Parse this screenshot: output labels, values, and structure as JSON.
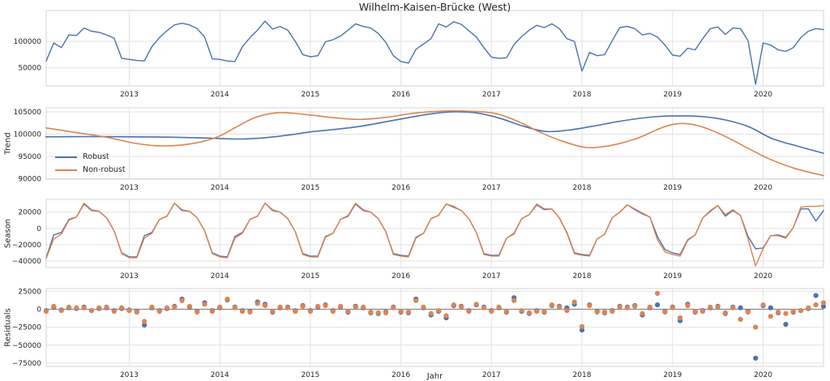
{
  "figure": {
    "title": "Wilhelm-Kaisen-Brücke (West)",
    "xlabel": "Jahr",
    "colors": {
      "robust_blue": "#4c72b0",
      "nonrobust_orange": "#dd8452",
      "gridline": "#e2e2e2",
      "panel_border": "#d5d5d5",
      "zero_line": "#8a8a8a",
      "text": "#262626"
    },
    "legend": {
      "items": [
        {
          "label": "Robust",
          "color": "#4c72b0"
        },
        {
          "label": "Non-robust",
          "color": "#dd8452"
        }
      ]
    },
    "xlim": [
      2012.083,
      2020.667
    ],
    "xticks": [
      {
        "v": 2013,
        "label": "2013"
      },
      {
        "v": 2014,
        "label": "2014"
      },
      {
        "v": 2015,
        "label": "2015"
      },
      {
        "v": 2016,
        "label": "2016"
      },
      {
        "v": 2017,
        "label": "2017"
      },
      {
        "v": 2018,
        "label": "2018"
      },
      {
        "v": 2019,
        "label": "2019"
      },
      {
        "v": 2020,
        "label": "2020"
      }
    ]
  },
  "chart_data": [
    {
      "id": "observed",
      "type": "line",
      "ylabel": "",
      "values_scale": 1000,
      "ylim": [
        16,
        158
      ],
      "yticks": [
        {
          "v": 50,
          "label": "50000"
        },
        {
          "v": 100,
          "label": "100000"
        }
      ],
      "x_start": 2012.0833,
      "x_step": 0.083333,
      "series": [
        {
          "name": "observed",
          "color": "#4c72b0",
          "smooth": false,
          "values": [
            63,
            97,
            88,
            112,
            111,
            125,
            119,
            117,
            112,
            106,
            68,
            66,
            64,
            63,
            90,
            107,
            120,
            131,
            134,
            131,
            124,
            108,
            67,
            66,
            63,
            62,
            90,
            107,
            121,
            138,
            123,
            128,
            121,
            100,
            75,
            71,
            73,
            99,
            103,
            110,
            121,
            133,
            128,
            125,
            115,
            98,
            73,
            62,
            59,
            85,
            95,
            105,
            133,
            127,
            137,
            132,
            120,
            108,
            88,
            70,
            68,
            69,
            94,
            109,
            121,
            130,
            126,
            133,
            124,
            105,
            100,
            44,
            79,
            73,
            75,
            101,
            126,
            128,
            124,
            112,
            115,
            108,
            93,
            74,
            72,
            87,
            84,
            105,
            124,
            127,
            113,
            125,
            124,
            101,
            19,
            97,
            93,
            84,
            81,
            88,
            107,
            119,
            124,
            122
          ]
        }
      ]
    },
    {
      "id": "trend",
      "type": "line",
      "ylabel": "Trend",
      "values_scale": 1000,
      "ylim": [
        89.9,
        105.9
      ],
      "yticks": [
        {
          "v": 90,
          "label": "90000"
        },
        {
          "v": 95,
          "label": "95000"
        },
        {
          "v": 100,
          "label": "100000"
        },
        {
          "v": 105,
          "label": "105000"
        }
      ],
      "series": [
        {
          "name": "Robust",
          "color": "#4c72b0",
          "smooth": true,
          "x": [
            2012.08,
            2012.6,
            2013.0,
            2013.5,
            2013.9,
            2014.2,
            2014.5,
            2014.8,
            2015.0,
            2015.5,
            2016.0,
            2016.35,
            2016.6,
            2016.85,
            2017.1,
            2017.35,
            2017.6,
            2017.85,
            2018.1,
            2018.45,
            2018.8,
            2019.1,
            2019.35,
            2019.6,
            2019.85,
            2020.1,
            2020.4,
            2020.667
          ],
          "y": [
            99.4,
            99.45,
            99.4,
            99.3,
            99.1,
            98.9,
            99.2,
            99.9,
            100.5,
            101.6,
            103.4,
            104.6,
            105.0,
            104.7,
            103.5,
            101.8,
            100.6,
            100.9,
            101.7,
            103.0,
            103.9,
            104.1,
            103.9,
            103.1,
            101.6,
            99.0,
            97.2,
            95.7
          ]
        },
        {
          "name": "Non-robust",
          "color": "#dd8452",
          "smooth": true,
          "x": [
            2012.08,
            2012.4,
            2012.75,
            2013.05,
            2013.3,
            2013.55,
            2013.8,
            2014.0,
            2014.2,
            2014.4,
            2014.65,
            2014.95,
            2015.25,
            2015.55,
            2015.85,
            2016.15,
            2016.5,
            2016.8,
            2017.05,
            2017.3,
            2017.55,
            2017.8,
            2018.05,
            2018.3,
            2018.6,
            2018.9,
            2019.1,
            2019.3,
            2019.55,
            2019.8,
            2020.05,
            2020.35,
            2020.667
          ],
          "y": [
            101.4,
            100.4,
            99.3,
            98.0,
            97.4,
            97.5,
            98.3,
            99.6,
            101.8,
            103.8,
            104.8,
            104.4,
            103.7,
            103.3,
            103.8,
            104.7,
            105.2,
            105.1,
            104.6,
            102.8,
            100.3,
            98.3,
            97.0,
            97.4,
            99.0,
            101.6,
            102.4,
            101.8,
            99.8,
            97.2,
            94.6,
            92.3,
            90.7
          ]
        }
      ]
    },
    {
      "id": "season",
      "type": "line",
      "ylabel": "Season",
      "values_scale": 1000,
      "ylim": [
        -48,
        35.6
      ],
      "yticks": [
        {
          "v": -40,
          "label": "−40000"
        },
        {
          "v": -20,
          "label": "−20000"
        },
        {
          "v": 0,
          "label": "0"
        },
        {
          "v": 20,
          "label": "20000"
        }
      ],
      "x_start": 2012.0833,
      "x_step": 0.083333,
      "series": [
        {
          "name": "Robust",
          "color": "#4c72b0",
          "smooth": false,
          "values": [
            -36,
            -8,
            -5,
            11,
            14,
            30,
            22,
            21,
            13,
            -3,
            -30,
            -35,
            -35,
            -9,
            -5,
            11,
            15,
            31,
            22,
            21,
            13,
            -3,
            -30,
            -34,
            -35,
            -10,
            -5,
            11,
            15,
            31,
            22,
            20,
            12,
            -4,
            -31,
            -34,
            -34,
            -10,
            -6,
            11,
            15,
            30,
            22,
            20,
            12,
            -4,
            -31,
            -33,
            -34,
            -11,
            -6,
            12,
            16,
            30,
            26,
            22,
            12,
            -5,
            -31,
            -33,
            -33,
            -12,
            -6,
            12,
            17,
            29,
            23,
            24,
            13,
            -5,
            -30,
            -32,
            -33,
            -13,
            -7,
            13,
            20,
            29,
            23,
            18,
            14,
            -10,
            -26,
            -30,
            -32,
            -14,
            -8,
            13,
            21,
            28,
            15,
            22,
            16,
            -10,
            -25,
            -24,
            -9,
            -8,
            -11,
            1,
            24,
            24,
            9,
            22
          ]
        },
        {
          "name": "Non-robust",
          "color": "#dd8452",
          "smooth": false,
          "values": [
            -37,
            -13,
            -7,
            10,
            14,
            31,
            23,
            21,
            13,
            -3,
            -31,
            -36,
            -36,
            -12,
            -6,
            11,
            15,
            31,
            23,
            21,
            13,
            -3,
            -31,
            -35,
            -36,
            -12,
            -6,
            11,
            15,
            31,
            23,
            20,
            12,
            -4,
            -32,
            -35,
            -35,
            -11,
            -6,
            11,
            16,
            31,
            23,
            20,
            12,
            -4,
            -32,
            -34,
            -35,
            -12,
            -6,
            12,
            16,
            30,
            27,
            22,
            12,
            -5,
            -32,
            -34,
            -34,
            -12,
            -7,
            12,
            17,
            30,
            24,
            24,
            13,
            -6,
            -31,
            -33,
            -34,
            -13,
            -7,
            13,
            20,
            29,
            24,
            19,
            14,
            -14,
            -29,
            -32,
            -34,
            -15,
            -8,
            13,
            22,
            28,
            17,
            23,
            16,
            -13,
            -46,
            -25,
            -9,
            -9,
            -12,
            1,
            26,
            27,
            27,
            28
          ]
        }
      ]
    },
    {
      "id": "residuals",
      "type": "scatter",
      "ylabel": "Residuals",
      "values_scale": 1000,
      "ylim": [
        -79.5,
        28.7
      ],
      "zero_line": true,
      "yticks": [
        {
          "v": -75,
          "label": "−75000"
        },
        {
          "v": -50,
          "label": "−50000"
        },
        {
          "v": -25,
          "label": "−25000"
        },
        {
          "v": 0,
          "label": "0"
        },
        {
          "v": 25,
          "label": "25000"
        }
      ],
      "x_start": 2012.0833,
      "x_step": 0.083333,
      "series": [
        {
          "name": "Robust",
          "color": "#4c72b0",
          "values": [
            -2,
            3,
            -1,
            2,
            1,
            3,
            -2,
            1,
            2,
            -2,
            1,
            -1,
            -3,
            -22,
            2,
            -2,
            1,
            4,
            14,
            3,
            -3,
            9,
            -2,
            2,
            13,
            3,
            -2,
            -3,
            10,
            7,
            -4,
            2,
            3,
            -2,
            5,
            -2,
            3,
            6,
            -2,
            3,
            -4,
            4,
            2,
            -5,
            -6,
            -4,
            3,
            -4,
            -5,
            14,
            2,
            -8,
            -3,
            -12,
            5,
            4,
            -2,
            6,
            3,
            -2,
            2,
            -4,
            16,
            -3,
            -6,
            -2,
            -4,
            5,
            4,
            2,
            7,
            -29,
            6,
            -3,
            -5,
            -2,
            4,
            3,
            5,
            -8,
            2,
            6,
            -3,
            3,
            -16,
            7,
            -4,
            -2,
            2,
            4,
            -6,
            3,
            2,
            -3,
            -68,
            5,
            2,
            -5,
            -21,
            -4,
            -2,
            1,
            19,
            4
          ]
        },
        {
          "name": "Non-robust",
          "color": "#dd8452",
          "values": [
            -3,
            4,
            -2,
            3,
            2,
            2,
            -2,
            2,
            3,
            -3,
            2,
            -2,
            -4,
            -17,
            3,
            -3,
            2,
            3,
            12,
            4,
            -4,
            7,
            -3,
            3,
            14,
            2,
            -3,
            -4,
            8,
            5,
            -3,
            3,
            2,
            -3,
            4,
            -3,
            4,
            5,
            -3,
            4,
            -3,
            3,
            3,
            -4,
            -5,
            -5,
            2,
            -3,
            -4,
            12,
            3,
            -6,
            -2,
            -9,
            6,
            3,
            -3,
            7,
            2,
            -3,
            3,
            -3,
            12,
            -2,
            -5,
            -3,
            -3,
            6,
            3,
            -2,
            10,
            -24,
            5,
            -4,
            -4,
            -3,
            3,
            2,
            4,
            -6,
            3,
            22,
            -4,
            2,
            -12,
            5,
            -3,
            -3,
            3,
            3,
            -5,
            2,
            -14,
            -4,
            -25,
            6,
            -10,
            -4,
            -6,
            -3,
            -2,
            2,
            6,
            9
          ]
        }
      ]
    }
  ]
}
